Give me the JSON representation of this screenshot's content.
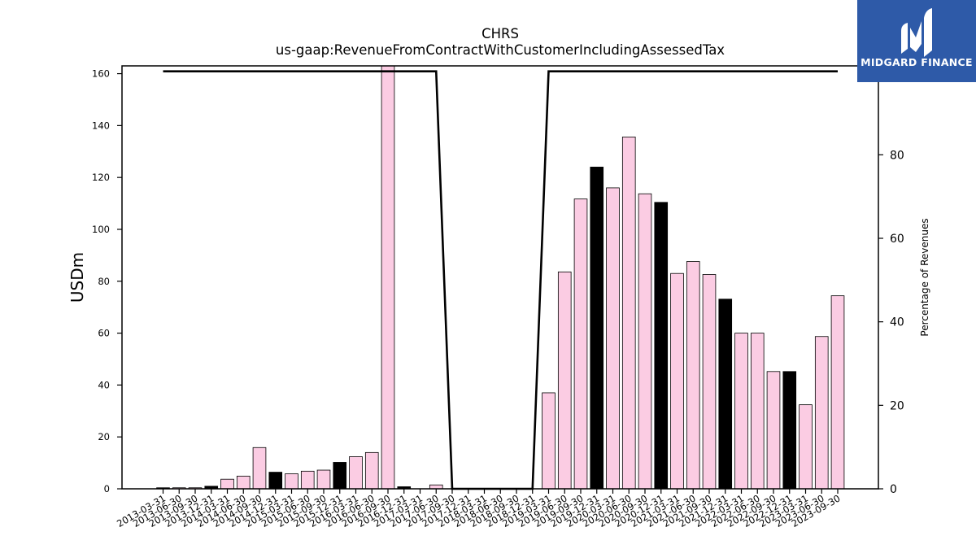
{
  "chart_data": {
    "type": "bar",
    "title": "CHRS",
    "subtitle": "us-gaap:RevenueFromContractWithCustomerIncludingAssessedTax",
    "ylabel": "USDm",
    "y2label": "Percentage of Revenues",
    "ylim": [
      0,
      163
    ],
    "y2lim": [
      0,
      101.3
    ],
    "yticks": [
      0,
      20,
      40,
      60,
      80,
      100,
      120,
      140,
      160
    ],
    "y2ticks": [
      0,
      20,
      40,
      60,
      80,
      100
    ],
    "categories": [
      "2013-03-31",
      "2013-06-30",
      "2013-09-30",
      "2013-12-31",
      "2014-03-31",
      "2014-06-30",
      "2014-09-30",
      "2014-12-31",
      "2015-03-31",
      "2015-06-30",
      "2015-09-30",
      "2015-12-31",
      "2016-03-31",
      "2016-06-30",
      "2016-09-30",
      "2016-12-31",
      "2017-03-31",
      "2017-06-30",
      "2017-09-30",
      "2017-12-31",
      "2018-03-31",
      "2018-06-30",
      "2018-09-30",
      "2018-12-31",
      "2019-03-31",
      "2019-06-30",
      "2019-09-30",
      "2019-12-31",
      "2020-03-31",
      "2020-06-30",
      "2020-09-30",
      "2020-12-31",
      "2021-03-31",
      "2021-06-30",
      "2021-09-30",
      "2021-12-31",
      "2022-03-31",
      "2022-06-30",
      "2022-09-30",
      "2022-12-31",
      "2023-03-31",
      "2023-06-30",
      "2023-09-30"
    ],
    "series": [
      {
        "axis": "left",
        "type": "bar",
        "values": [
          0.4,
          0.4,
          0.4,
          1.0,
          3.7,
          4.9,
          15.9,
          6.4,
          5.8,
          6.8,
          7.2,
          10.2,
          12.4,
          14.0,
          163.0,
          0.8,
          0.0,
          1.5,
          0.0,
          0.0,
          0.0,
          0.0,
          0.0,
          0.0,
          37.0,
          83.6,
          111.7,
          124.0,
          116.0,
          135.6,
          113.7,
          110.4,
          83.0,
          87.6,
          82.6,
          73.1,
          60.0,
          60.0,
          45.2,
          45.2,
          32.4,
          58.7,
          74.4
        ],
        "colors": [
          "#000000",
          "#fbcce3",
          "#fbcce3",
          "#000000",
          "#fbcce3",
          "#fbcce3",
          "#fbcce3",
          "#000000",
          "#fbcce3",
          "#fbcce3",
          "#fbcce3",
          "#000000",
          "#fbcce3",
          "#fbcce3",
          "#fbcce3",
          "#000000",
          "#fbcce3",
          "#fbcce3",
          "#fbcce3",
          "#000000",
          "#fbcce3",
          "#fbcce3",
          "#fbcce3",
          "#000000",
          "#fbcce3",
          "#fbcce3",
          "#fbcce3",
          "#000000",
          "#fbcce3",
          "#fbcce3",
          "#fbcce3",
          "#000000",
          "#fbcce3",
          "#fbcce3",
          "#fbcce3",
          "#000000",
          "#fbcce3",
          "#fbcce3",
          "#fbcce3",
          "#000000",
          "#fbcce3",
          "#fbcce3",
          "#fbcce3"
        ]
      },
      {
        "axis": "right",
        "type": "line",
        "color": "#000000",
        "values": [
          100,
          100,
          100,
          100,
          100,
          100,
          100,
          100,
          100,
          100,
          100,
          100,
          100,
          100,
          100,
          100,
          100,
          100,
          0,
          0,
          0,
          0,
          0,
          0,
          100,
          100,
          100,
          100,
          100,
          100,
          100,
          100,
          100,
          100,
          100,
          100,
          100,
          100,
          100,
          100,
          100,
          100,
          100
        ]
      }
    ]
  },
  "logo": {
    "text": "MIDGARD FINANCE",
    "color": "#2e5aa8"
  }
}
